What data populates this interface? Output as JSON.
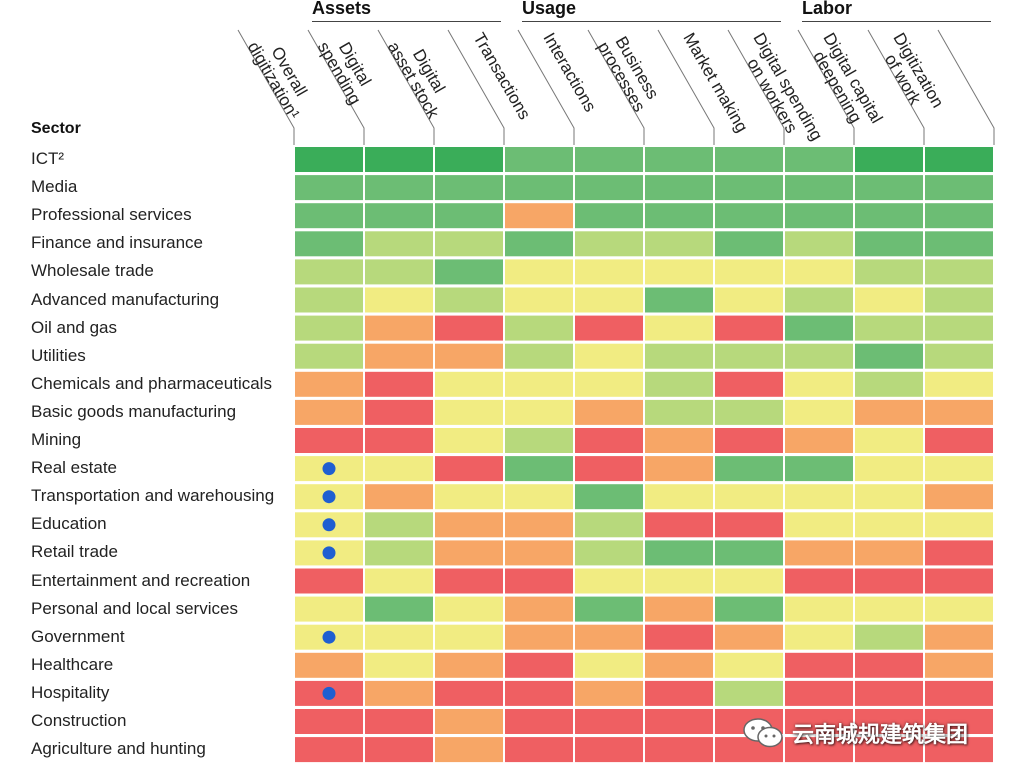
{
  "chart_data": {
    "type": "heatmap",
    "row_header": "Sector",
    "column_groups": [
      {
        "name": "Assets",
        "span": [
          0,
          2
        ]
      },
      {
        "name": "Usage",
        "span": [
          3,
          6
        ]
      },
      {
        "name": "Labor",
        "span": [
          7,
          9
        ]
      }
    ],
    "columns": [
      [
        "Overall",
        "digitization¹"
      ],
      [
        "Digital",
        "spending"
      ],
      [
        "Digital",
        "asset stock"
      ],
      [
        "Transactions"
      ],
      [
        "Interactions"
      ],
      [
        "Business",
        "processes"
      ],
      [
        "Market making"
      ],
      [
        "Digital spending",
        "on workers"
      ],
      [
        "Digital capital",
        "deepening"
      ],
      [
        "Digitization",
        "of work"
      ]
    ],
    "rows": [
      "ICT²",
      "Media",
      "Professional services",
      "Finance and insurance",
      "Wholesale trade",
      "Advanced manufacturing",
      "Oil and gas",
      "Utilities",
      "Chemicals and pharmaceuticals",
      "Basic goods manufacturing",
      "Mining",
      "Real estate",
      "Transportation and warehousing",
      "Education",
      "Retail trade",
      "Entertainment and recreation",
      "Personal and local services",
      "Government",
      "Healthcare",
      "Hospitality",
      "Construction",
      "Agriculture and hunting"
    ],
    "scale_levels": [
      "R",
      "O",
      "Y",
      "L",
      "G",
      "D"
    ],
    "scale_colors": {
      "R": "#ef5f62",
      "O": "#f7a666",
      "Y": "#f1ec82",
      "L": "#b7d97c",
      "G": "#6cbd74",
      "D": "#3aad59"
    },
    "values": [
      [
        "D",
        "D",
        "D",
        "G",
        "G",
        "G",
        "G",
        "G",
        "D",
        "D"
      ],
      [
        "G",
        "G",
        "G",
        "G",
        "G",
        "G",
        "G",
        "G",
        "G",
        "G"
      ],
      [
        "G",
        "G",
        "G",
        "O",
        "G",
        "G",
        "G",
        "G",
        "G",
        "G"
      ],
      [
        "G",
        "L",
        "L",
        "G",
        "L",
        "L",
        "G",
        "L",
        "G",
        "G"
      ],
      [
        "L",
        "L",
        "G",
        "Y",
        "Y",
        "Y",
        "Y",
        "Y",
        "L",
        "L"
      ],
      [
        "L",
        "Y",
        "L",
        "Y",
        "Y",
        "G",
        "Y",
        "L",
        "Y",
        "L"
      ],
      [
        "L",
        "O",
        "R",
        "L",
        "R",
        "Y",
        "R",
        "G",
        "L",
        "L"
      ],
      [
        "L",
        "O",
        "O",
        "L",
        "Y",
        "L",
        "L",
        "L",
        "G",
        "L"
      ],
      [
        "O",
        "R",
        "Y",
        "Y",
        "Y",
        "L",
        "R",
        "Y",
        "L",
        "Y"
      ],
      [
        "O",
        "R",
        "Y",
        "Y",
        "O",
        "L",
        "L",
        "Y",
        "O",
        "O"
      ],
      [
        "R",
        "R",
        "Y",
        "L",
        "R",
        "O",
        "R",
        "O",
        "Y",
        "R"
      ],
      [
        "Y",
        "Y",
        "R",
        "G",
        "R",
        "O",
        "G",
        "G",
        "Y",
        "Y"
      ],
      [
        "Y",
        "O",
        "Y",
        "Y",
        "G",
        "Y",
        "Y",
        "Y",
        "Y",
        "O"
      ],
      [
        "Y",
        "L",
        "O",
        "O",
        "L",
        "R",
        "R",
        "Y",
        "Y",
        "Y"
      ],
      [
        "Y",
        "L",
        "O",
        "O",
        "L",
        "G",
        "G",
        "O",
        "O",
        "R"
      ],
      [
        "R",
        "Y",
        "R",
        "R",
        "Y",
        "Y",
        "Y",
        "R",
        "R",
        "R"
      ],
      [
        "Y",
        "G",
        "Y",
        "O",
        "G",
        "O",
        "G",
        "Y",
        "Y",
        "Y"
      ],
      [
        "Y",
        "Y",
        "Y",
        "O",
        "O",
        "R",
        "O",
        "Y",
        "L",
        "O"
      ],
      [
        "O",
        "Y",
        "O",
        "R",
        "Y",
        "O",
        "Y",
        "R",
        "R",
        "O"
      ],
      [
        "R",
        "O",
        "R",
        "R",
        "O",
        "R",
        "L",
        "R",
        "R",
        "R"
      ],
      [
        "R",
        "R",
        "O",
        "R",
        "R",
        "R",
        "R",
        "R",
        "R",
        "R"
      ],
      [
        "R",
        "R",
        "O",
        "R",
        "R",
        "R",
        "R",
        "R",
        "R",
        "R"
      ]
    ],
    "markers": {
      "column": 0,
      "rows": [
        11,
        12,
        13,
        14,
        17,
        19
      ]
    }
  },
  "watermark": {
    "text": "云南城规建筑集团",
    "icon": "wechat-icon"
  }
}
